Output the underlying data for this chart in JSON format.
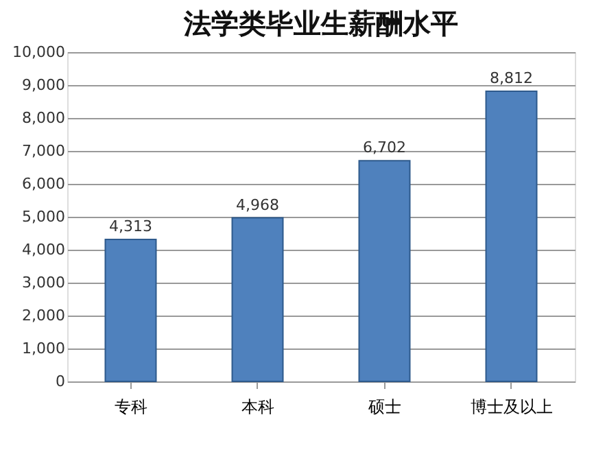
{
  "chart_data": {
    "type": "bar",
    "title": "法学类毕业生薪酬水平",
    "categories": [
      "专科",
      "本科",
      "硕士",
      "博士及以上"
    ],
    "values": [
      4313,
      4968,
      6702,
      8812
    ],
    "value_labels": [
      "4,313",
      "4,968",
      "6,702",
      "8,812"
    ],
    "color": "#4f81bd",
    "ylim": [
      0,
      10000
    ],
    "yticks": [
      {
        "value": 0,
        "label": "0"
      },
      {
        "value": 1000,
        "label": "1,000"
      },
      {
        "value": 2000,
        "label": "2,000"
      },
      {
        "value": 3000,
        "label": "3,000"
      },
      {
        "value": 4000,
        "label": "4,000"
      },
      {
        "value": 5000,
        "label": "5,000"
      },
      {
        "value": 6000,
        "label": "6,000"
      },
      {
        "value": 7000,
        "label": "7,000"
      },
      {
        "value": 8000,
        "label": "8,000"
      },
      {
        "value": 9000,
        "label": "9,000"
      },
      {
        "value": 10000,
        "label": "10,000"
      }
    ],
    "grid": "y"
  }
}
